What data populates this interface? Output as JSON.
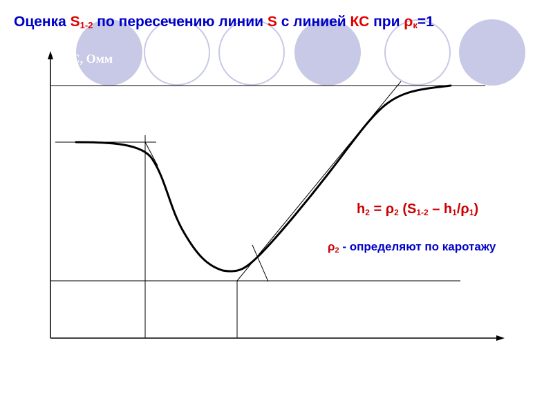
{
  "title": {
    "part1": "Оценка ",
    "s": "S",
    "s_sub": "1-2",
    "part2": " по пересечению линии ",
    "s2": "S",
    "part3": " с линией ",
    "kc": "КС",
    "part4": " при ",
    "rho": "ρ",
    "rho_sub": "к",
    "part5": "=1"
  },
  "axis_label": "КС, Омм",
  "formula": {
    "h": "h",
    "h_sub": "2",
    "eq": " = ",
    "rho": "ρ",
    "rho_sub": "2",
    "open": " (S",
    "s_sub": "1-2",
    "mid": " – h",
    "h1_sub": "1",
    "slash": "/ρ",
    "rho1_sub": "1",
    "close": ")"
  },
  "note": {
    "rho": "ρ",
    "rho_sub": "2",
    "text": " - определяют по каротажу"
  },
  "colors": {
    "title_blue": "#0000c8",
    "accent_red": "#e00000",
    "circle_lavender": "#c7c9e6",
    "line_black": "#000000"
  }
}
